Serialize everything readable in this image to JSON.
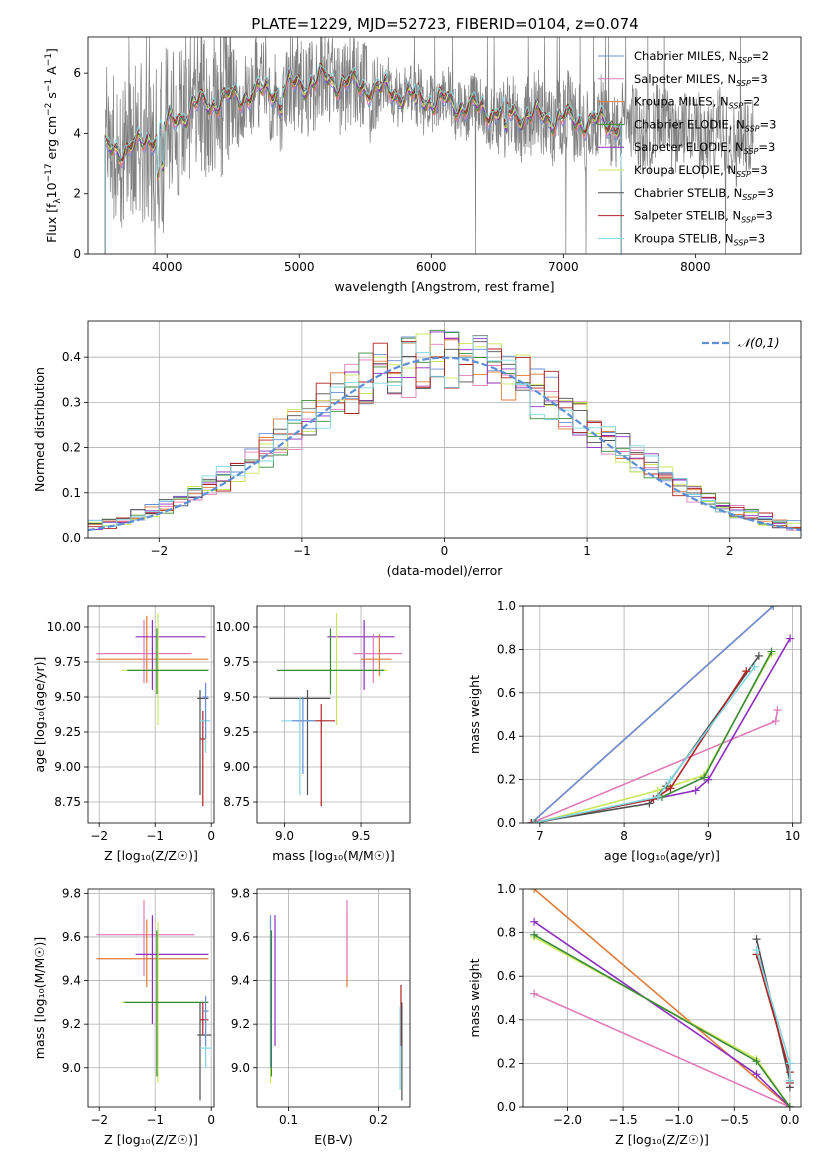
{
  "figure": {
    "title": "PLATE=1229, MJD=52723, FIBERID=0104, z=0.074"
  },
  "series_styles": [
    {
      "name": "Chabrier MILES",
      "nssp": "2",
      "color": "#6a8fd6"
    },
    {
      "name": "Salpeter MILES",
      "nssp": "3",
      "color": "#e07cb8"
    },
    {
      "name": "Kroupa MILES",
      "nssp": "2",
      "color": "#e07b39"
    },
    {
      "name": "Chabrier ELODIE",
      "nssp": "3",
      "color": "#3a8a3a"
    },
    {
      "name": "Salpeter ELODIE",
      "nssp": "3",
      "color": "#8e2fbf"
    },
    {
      "name": "Kroupa ELODIE",
      "nssp": "3",
      "color": "#c8e85a"
    },
    {
      "name": "Chabrier STELIB",
      "nssp": "3",
      "color": "#505050"
    },
    {
      "name": "Salpeter STELIB",
      "nssp": "3",
      "color": "#b22222"
    },
    {
      "name": "Kroupa STELIB",
      "nssp": "3",
      "color": "#7fd6e0"
    }
  ],
  "chart_data": [
    {
      "id": "spectrum",
      "type": "line",
      "xlabel": "wavelength [Angstrom, rest frame]",
      "ylabel_main": "Flux [f",
      "ylabel_sub": "λ",
      "ylabel_mid": "10",
      "ylabel_sup1": "−17",
      "ylabel_tail": " erg cm",
      "ylabel_sup2": "−2",
      "ylabel_tail2": " s",
      "ylabel_sup3": "−1",
      "ylabel_tail3": " A",
      "ylabel_sup4": "−1",
      "ylabel_end": "]",
      "xlim": [
        3400,
        8800
      ],
      "ylim": [
        0,
        7.2
      ],
      "xticks": [
        4000,
        5000,
        6000,
        7000,
        8000
      ],
      "yticks": [
        0,
        2,
        4,
        6
      ],
      "data_color": "#808080",
      "model_start": 3530,
      "model_end": 7440,
      "data_end": 8440,
      "legend_location": "upper-right"
    },
    {
      "id": "residuals",
      "type": "line",
      "xlabel": "(data-model)/error",
      "ylabel": "Normed distribution",
      "xlim": [
        -2.5,
        2.5
      ],
      "ylim": [
        0,
        0.48
      ],
      "xticks": [
        -2,
        -1,
        0,
        1,
        2
      ],
      "yticks": [
        0.0,
        0.1,
        0.2,
        0.3,
        0.4
      ],
      "bin_width": 0.1,
      "legend_label": "𝒩(0,1)",
      "legend_color": "#5b8fd6",
      "legend_location": "upper-right",
      "grid": true
    },
    {
      "id": "age_vs_Z",
      "type": "errorbar",
      "xlabel": "Z [log₁₀(Z/Z☉)]",
      "ylabel": "age  [log₁₀(age/yr)]",
      "xlim": [
        -2.2,
        0.05
      ],
      "ylim": [
        8.6,
        10.15
      ],
      "xticks": [
        -2,
        -1,
        0
      ],
      "yticks": [
        8.75,
        9.0,
        9.25,
        9.5,
        9.75,
        10.0
      ],
      "grid": true,
      "points": [
        {
          "series": 2,
          "x": -1.15,
          "y": 9.77,
          "x0": -2.05,
          "x1": -0.05,
          "y0": 9.6,
          "y1": 10.08
        },
        {
          "series": 1,
          "x": -1.2,
          "y": 9.81,
          "x0": -2.05,
          "x1": -0.35,
          "y0": 9.6,
          "y1": 10.05
        },
        {
          "series": 4,
          "x": -1.05,
          "y": 9.93,
          "x0": -1.35,
          "x1": -0.1,
          "y0": 9.55,
          "y1": 10.05
        },
        {
          "series": 5,
          "x": -0.95,
          "y": 9.69,
          "x0": -1.6,
          "x1": -0.05,
          "y0": 9.3,
          "y1": 10.1
        },
        {
          "series": 3,
          "x": -0.97,
          "y": 9.69,
          "x0": -1.5,
          "x1": -0.05,
          "y0": 9.52,
          "y1": 9.99
        },
        {
          "series": 6,
          "x": -0.2,
          "y": 9.49,
          "x0": -0.25,
          "x1": -0.05,
          "y0": 8.8,
          "y1": 9.55
        },
        {
          "series": 7,
          "x": -0.15,
          "y": 9.2,
          "x0": -0.2,
          "x1": -0.1,
          "y0": 8.72,
          "y1": 9.4
        },
        {
          "series": 8,
          "x": -0.1,
          "y": 9.33,
          "x0": -0.2,
          "x1": -0.02,
          "y0": 9.1,
          "y1": 9.35
        },
        {
          "series": 0,
          "x": -0.1,
          "y": 9.5,
          "x0": -0.15,
          "x1": -0.05,
          "y0": 9.2,
          "y1": 9.6
        }
      ]
    },
    {
      "id": "age_vs_mass",
      "type": "errorbar",
      "xlabel": "mass [log₁₀(M/M☉)]",
      "ylabel": "",
      "xlim": [
        8.82,
        9.82
      ],
      "ylim": [
        8.6,
        10.15
      ],
      "xticks": [
        9.0,
        9.5
      ],
      "yticks": [
        8.75,
        9.0,
        9.25,
        9.5,
        9.75,
        10.0
      ],
      "grid": true,
      "points": [
        {
          "series": 4,
          "x": 9.52,
          "y": 9.93,
          "x0": 9.28,
          "x1": 9.72,
          "y0": 9.55,
          "y1": 10.05
        },
        {
          "series": 1,
          "x": 9.58,
          "y": 9.81,
          "x0": 9.45,
          "x1": 9.77,
          "y0": 9.6,
          "y1": 9.95
        },
        {
          "series": 2,
          "x": 9.62,
          "y": 9.77,
          "x0": 9.5,
          "x1": 9.7,
          "y0": 9.65,
          "y1": 9.95
        },
        {
          "series": 5,
          "x": 9.34,
          "y": 9.69,
          "x0": 9.05,
          "x1": 9.67,
          "y0": 9.3,
          "y1": 10.1
        },
        {
          "series": 3,
          "x": 9.3,
          "y": 9.69,
          "x0": 8.95,
          "x1": 9.65,
          "y0": 9.52,
          "y1": 9.99
        },
        {
          "series": 6,
          "x": 9.15,
          "y": 9.49,
          "x0": 8.9,
          "x1": 9.3,
          "y0": 8.8,
          "y1": 9.55
        },
        {
          "series": 7,
          "x": 9.24,
          "y": 9.33,
          "x0": 9.15,
          "x1": 9.33,
          "y0": 8.72,
          "y1": 9.45
        },
        {
          "series": 8,
          "x": 9.1,
          "y": 9.33,
          "x0": 8.98,
          "x1": 9.2,
          "y0": 8.8,
          "y1": 9.5
        },
        {
          "series": 0,
          "x": 9.12,
          "y": 9.33,
          "x0": 9.05,
          "x1": 9.2,
          "y0": 8.95,
          "y1": 9.5
        }
      ]
    },
    {
      "id": "weight_vs_age",
      "type": "line",
      "xlabel": "age  [log₁₀(age/yr)]",
      "ylabel": "mass weight",
      "xlim": [
        6.8,
        10.1
      ],
      "ylim": [
        0,
        1.0
      ],
      "xticks": [
        7,
        8,
        9,
        10
      ],
      "yticks": [
        0.0,
        0.2,
        0.4,
        0.6,
        0.8,
        1.0
      ],
      "grid": true,
      "series": [
        {
          "series": 2,
          "x": [
            6.9,
            9.77
          ],
          "y": [
            0.0,
            1.0
          ]
        },
        {
          "series": 0,
          "x": [
            6.9,
            9.77
          ],
          "y": [
            0.0,
            1.0
          ]
        },
        {
          "series": 1,
          "x": [
            6.9,
            9.8,
            9.82
          ],
          "y": [
            0.0,
            0.47,
            0.52
          ]
        },
        {
          "series": 4,
          "x": [
            6.95,
            8.85,
            9.0,
            9.97
          ],
          "y": [
            0.0,
            0.15,
            0.2,
            0.85
          ]
        },
        {
          "series": 5,
          "x": [
            6.95,
            8.4,
            8.95,
            9.75
          ],
          "y": [
            0.0,
            0.15,
            0.22,
            0.78
          ]
        },
        {
          "series": 3,
          "x": [
            6.95,
            8.45,
            8.95,
            9.75
          ],
          "y": [
            0.0,
            0.12,
            0.21,
            0.79
          ]
        },
        {
          "series": 6,
          "x": [
            6.9,
            8.3,
            8.5,
            9.6
          ],
          "y": [
            0.0,
            0.09,
            0.17,
            0.77
          ]
        },
        {
          "series": 7,
          "x": [
            6.9,
            8.35,
            8.55,
            9.45
          ],
          "y": [
            0.0,
            0.11,
            0.16,
            0.7
          ]
        },
        {
          "series": 8,
          "x": [
            6.92,
            8.4,
            8.55,
            9.55
          ],
          "y": [
            0.0,
            0.12,
            0.2,
            0.72
          ]
        }
      ]
    },
    {
      "id": "mass_vs_Z",
      "type": "errorbar",
      "xlabel": "Z [log₁₀(Z/Z☉)]",
      "ylabel": "mass [log₁₀(M/M☉)]",
      "xlim": [
        -2.2,
        0.05
      ],
      "ylim": [
        8.82,
        9.82
      ],
      "xticks": [
        -2,
        -1,
        0
      ],
      "yticks": [
        9.0,
        9.2,
        9.4,
        9.6,
        9.8
      ],
      "grid": true,
      "points": [
        {
          "series": 1,
          "x": -1.2,
          "y": 9.61,
          "x0": -2.05,
          "x1": -0.3,
          "y0": 9.42,
          "y1": 9.77
        },
        {
          "series": 2,
          "x": -1.15,
          "y": 9.5,
          "x0": -2.05,
          "x1": -0.05,
          "y0": 9.37,
          "y1": 9.68
        },
        {
          "series": 4,
          "x": -1.05,
          "y": 9.52,
          "x0": -1.35,
          "x1": -0.05,
          "y0": 9.2,
          "y1": 9.7
        },
        {
          "series": 5,
          "x": -0.95,
          "y": 9.3,
          "x0": -1.6,
          "x1": -0.05,
          "y0": 8.93,
          "y1": 9.67
        },
        {
          "series": 3,
          "x": -0.97,
          "y": 9.3,
          "x0": -1.55,
          "x1": -0.05,
          "y0": 8.96,
          "y1": 9.63
        },
        {
          "series": 6,
          "x": -0.2,
          "y": 9.15,
          "x0": -0.25,
          "x1": 0.0,
          "y0": 8.85,
          "y1": 9.3
        },
        {
          "series": 7,
          "x": -0.15,
          "y": 9.22,
          "x0": -0.2,
          "x1": -0.05,
          "y0": 9.15,
          "y1": 9.3
        },
        {
          "series": 8,
          "x": -0.1,
          "y": 9.09,
          "x0": -0.2,
          "x1": 0.0,
          "y0": 9.0,
          "y1": 9.25
        },
        {
          "series": 0,
          "x": -0.1,
          "y": 9.26,
          "x0": -0.15,
          "x1": -0.05,
          "y0": 9.1,
          "y1": 9.33
        }
      ]
    },
    {
      "id": "mass_vs_EBV",
      "type": "errorbar",
      "xlabel": "E(B-V)",
      "ylabel": "",
      "xlim": [
        0.065,
        0.235
      ],
      "ylim": [
        8.82,
        9.82
      ],
      "xticks": [
        0.1,
        0.2
      ],
      "yticks": [
        9.0,
        9.2,
        9.4,
        9.6,
        9.8
      ],
      "grid": true,
      "points": [
        {
          "series": 5,
          "x": 0.08,
          "y": 9.3,
          "x0": 0.08,
          "x1": 0.08,
          "y0": 8.93,
          "y1": 9.67
        },
        {
          "series": 0,
          "x": 0.08,
          "y": 9.5,
          "x0": 0.08,
          "x1": 0.08,
          "y0": 9.0,
          "y1": 9.7
        },
        {
          "series": 3,
          "x": 0.081,
          "y": 9.3,
          "x0": 0.081,
          "x1": 0.081,
          "y0": 8.96,
          "y1": 9.63
        },
        {
          "series": 4,
          "x": 0.085,
          "y": 9.52,
          "x0": 0.085,
          "x1": 0.085,
          "y0": 9.1,
          "y1": 9.7
        },
        {
          "series": 2,
          "x": 0.165,
          "y": 9.5,
          "x0": 0.165,
          "x1": 0.165,
          "y0": 9.37,
          "y1": 9.71
        },
        {
          "series": 1,
          "x": 0.165,
          "y": 9.61,
          "x0": 0.165,
          "x1": 0.165,
          "y0": 9.42,
          "y1": 9.77
        },
        {
          "series": 7,
          "x": 0.225,
          "y": 9.22,
          "x0": 0.225,
          "x1": 0.225,
          "y0": 9.1,
          "y1": 9.38
        },
        {
          "series": 6,
          "x": 0.226,
          "y": 9.15,
          "x0": 0.226,
          "x1": 0.226,
          "y0": 8.85,
          "y1": 9.3
        },
        {
          "series": 8,
          "x": 0.224,
          "y": 9.09,
          "x0": 0.224,
          "x1": 0.224,
          "y0": 8.9,
          "y1": 9.28
        }
      ]
    },
    {
      "id": "weight_vs_Z",
      "type": "line",
      "xlabel": "Z [log₁₀(Z/Z☉)]",
      "ylabel": "mass weight",
      "xlim": [
        -2.4,
        0.1
      ],
      "ylim": [
        0,
        1.0
      ],
      "xticks": [
        -2.0,
        -1.5,
        -1.0,
        -0.5,
        0.0
      ],
      "yticks": [
        0.0,
        0.2,
        0.4,
        0.6,
        0.8,
        1.0
      ],
      "grid": true,
      "series": [
        {
          "series": 2,
          "x": [
            -2.3,
            0.0
          ],
          "y": [
            1.0,
            0.0
          ]
        },
        {
          "series": 1,
          "x": [
            -2.3,
            0.0
          ],
          "y": [
            0.52,
            0.0
          ]
        },
        {
          "series": 4,
          "x": [
            -2.3,
            -0.3,
            0.0
          ],
          "y": [
            0.85,
            0.15,
            0.0
          ]
        },
        {
          "series": 5,
          "x": [
            -2.3,
            -0.3,
            0.0
          ],
          "y": [
            0.78,
            0.22,
            0.0
          ]
        },
        {
          "series": 3,
          "x": [
            -2.3,
            -0.3,
            0.0
          ],
          "y": [
            0.79,
            0.21,
            0.0
          ]
        },
        {
          "series": 6,
          "x": [
            -0.3,
            0.0,
            0.0
          ],
          "y": [
            0.77,
            0.12,
            0.09
          ]
        },
        {
          "series": 7,
          "x": [
            -0.3,
            0.0,
            0.0
          ],
          "y": [
            0.7,
            0.16,
            0.11
          ]
        },
        {
          "series": 8,
          "x": [
            -0.3,
            0.0,
            0.0
          ],
          "y": [
            0.72,
            0.2,
            0.12
          ]
        }
      ]
    }
  ]
}
